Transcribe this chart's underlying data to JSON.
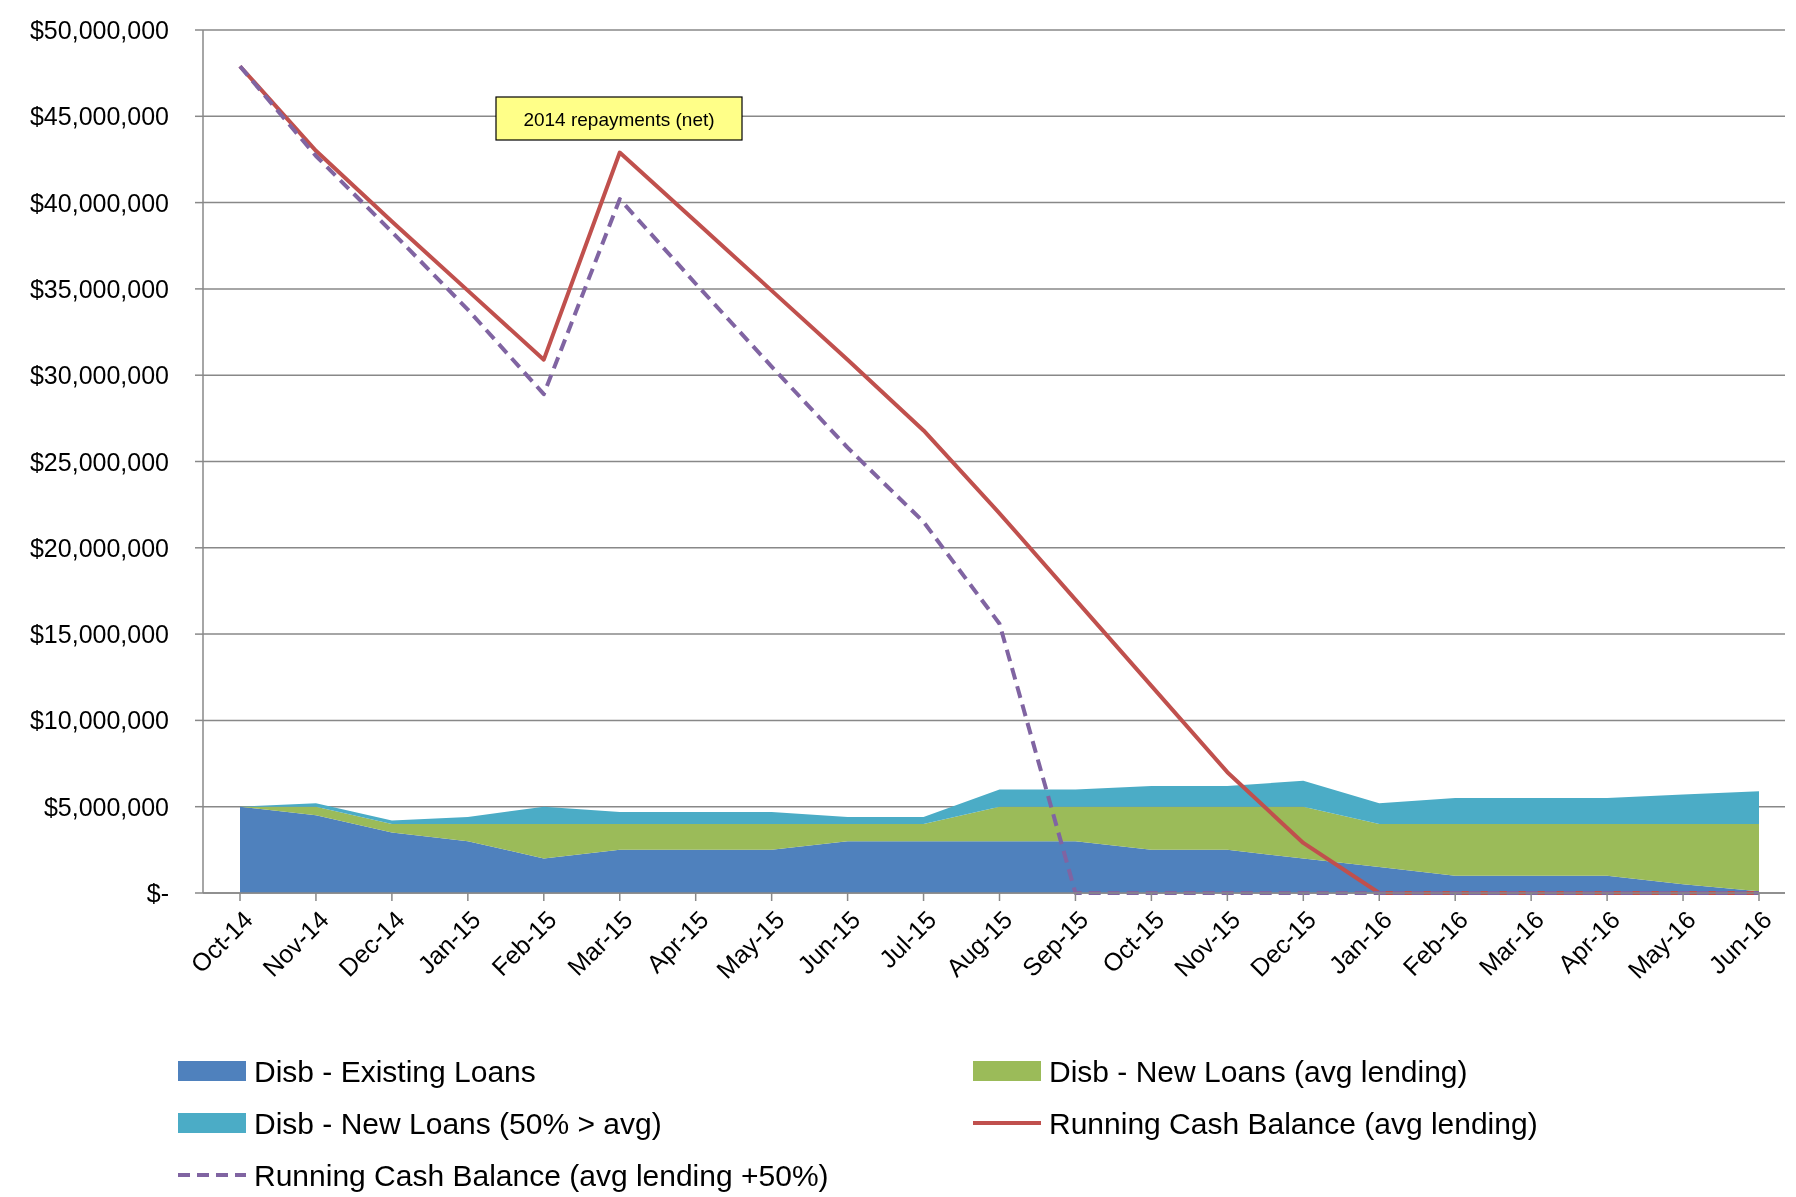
{
  "chart_data": {
    "type": "area",
    "stacked": true,
    "grid": "y",
    "legend": "bottom",
    "categories": [
      "Oct-14",
      "Nov-14",
      "Dec-14",
      "Jan-15",
      "Feb-15",
      "Mar-15",
      "Apr-15",
      "May-15",
      "Jun-15",
      "Jul-15",
      "Aug-15",
      "Sep-15",
      "Oct-15",
      "Nov-15",
      "Dec-15",
      "Jan-16",
      "Feb-16",
      "Mar-16",
      "Apr-16",
      "May-16",
      "Jun-16"
    ],
    "ylim": [
      0,
      50000000
    ],
    "yticks": [
      {
        "value": 0,
        "label": "$-"
      },
      {
        "value": 5000000,
        "label": "$5,000,000"
      },
      {
        "value": 10000000,
        "label": "$10,000,000"
      },
      {
        "value": 15000000,
        "label": "$15,000,000"
      },
      {
        "value": 20000000,
        "label": "$20,000,000"
      },
      {
        "value": 25000000,
        "label": "$25,000,000"
      },
      {
        "value": 30000000,
        "label": "$30,000,000"
      },
      {
        "value": 35000000,
        "label": "$35,000,000"
      },
      {
        "value": 40000000,
        "label": "$40,000,000"
      },
      {
        "value": 45000000,
        "label": "$45,000,000"
      },
      {
        "value": 50000000,
        "label": "$50,000,000"
      }
    ],
    "annotations": [
      "2014 repayments (net)"
    ],
    "series": [
      {
        "name": "Disb - Existing Loans",
        "type": "area",
        "color": "#4f81bd",
        "values": [
          5000000,
          4500000,
          3500000,
          3000000,
          2000000,
          2500000,
          2500000,
          2500000,
          3000000,
          3000000,
          3000000,
          3000000,
          2500000,
          2500000,
          2000000,
          1500000,
          1000000,
          1000000,
          1000000,
          500000,
          100000
        ]
      },
      {
        "name": "Disb - New Loans (avg lending)",
        "type": "area",
        "color": "#9bbb59",
        "values": [
          0,
          500000,
          500000,
          1000000,
          2000000,
          1500000,
          1500000,
          1500000,
          1000000,
          1000000,
          2000000,
          2000000,
          2500000,
          2500000,
          3000000,
          2500000,
          3000000,
          3000000,
          3000000,
          3500000,
          3900000
        ]
      },
      {
        "name": "Disb - New Loans (50% > avg)",
        "type": "area",
        "color": "#4bacc6",
        "values": [
          0,
          200000,
          200000,
          400000,
          1000000,
          700000,
          700000,
          700000,
          400000,
          400000,
          1000000,
          1000000,
          1200000,
          1200000,
          1500000,
          1200000,
          1500000,
          1500000,
          1500000,
          1700000,
          1900000
        ]
      },
      {
        "name": "Running Cash Balance (avg lending)",
        "type": "line",
        "line_style": "solid",
        "color": "#c0504d",
        "values": [
          47900000,
          43000000,
          38900000,
          34900000,
          30900000,
          42900000,
          38900000,
          34900000,
          30900000,
          26800000,
          22000000,
          17000000,
          12000000,
          7000000,
          2900000,
          0,
          0,
          0,
          0,
          0,
          0
        ]
      },
      {
        "name": "Running Cash Balance (avg lending +50%)",
        "type": "line",
        "line_style": "dashed",
        "color": "#8064a2",
        "values": [
          47900000,
          42700000,
          38300000,
          33800000,
          28900000,
          40200000,
          35300000,
          30500000,
          25800000,
          21500000,
          15600000,
          0,
          0,
          0,
          0,
          0,
          0,
          0,
          0,
          0,
          0
        ]
      }
    ]
  }
}
